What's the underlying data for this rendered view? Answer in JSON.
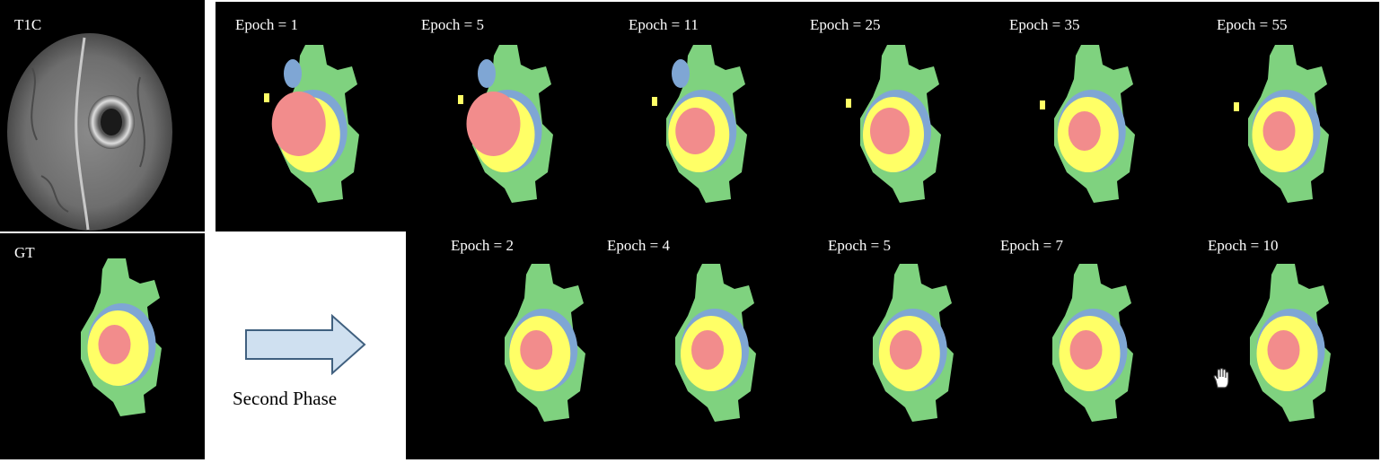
{
  "labels": {
    "t1c": "T1C",
    "gt": "GT",
    "second_phase": "Second Phase"
  },
  "first_phase_epochs": [
    {
      "label": "Epoch = 1"
    },
    {
      "label": "Epoch = 5"
    },
    {
      "label": "Epoch = 11"
    },
    {
      "label": "Epoch = 25"
    },
    {
      "label": "Epoch = 35"
    },
    {
      "label": "Epoch = 55"
    }
  ],
  "second_phase_epochs": [
    {
      "label": "Epoch = 2"
    },
    {
      "label": "Epoch = 4"
    },
    {
      "label": "Epoch = 5"
    },
    {
      "label": "Epoch = 7"
    },
    {
      "label": "Epoch = 10"
    }
  ],
  "colors": {
    "background": "#000000",
    "edema": "#7fd27f",
    "enhancing": "#ffff66",
    "necrotic": "#f28c8c",
    "nonenhancing": "#7fa6d4",
    "arrow_fill": "#cfe0f0",
    "arrow_stroke": "#40607f"
  },
  "icons": {
    "cursor": "hand-cursor-icon"
  }
}
